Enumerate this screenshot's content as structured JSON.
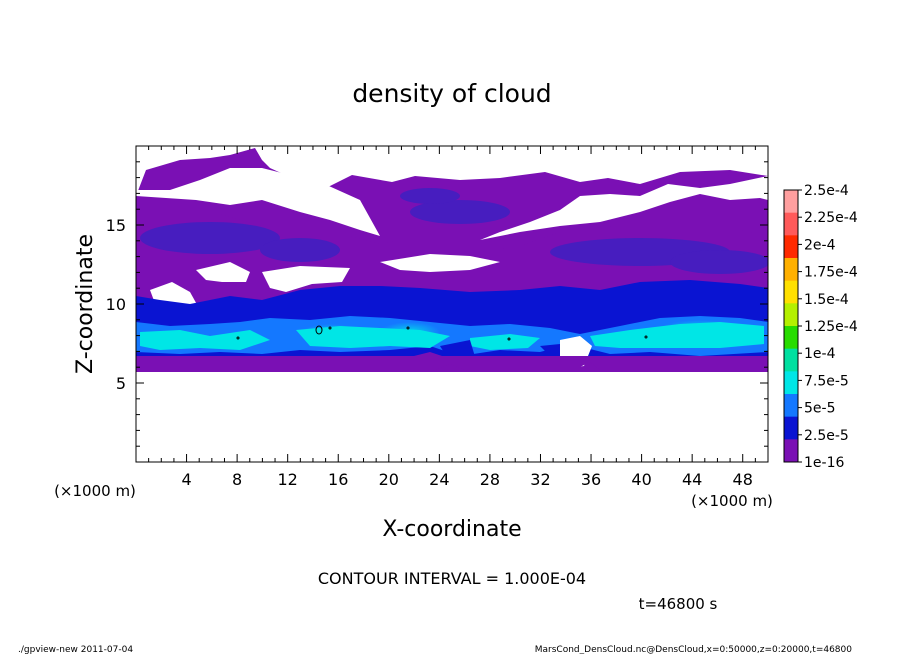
{
  "chart_data": {
    "type": "heatmap",
    "title": "density of cloud",
    "xlabel": "X-coordinate",
    "ylabel": "Z-coordinate",
    "x_unit": "(×1000 m)",
    "y_unit": "(×1000 m)",
    "xlim": [
      0,
      50
    ],
    "ylim": [
      0,
      20
    ],
    "x_ticks": [
      "4",
      "8",
      "12",
      "16",
      "20",
      "24",
      "28",
      "32",
      "36",
      "40",
      "44",
      "48"
    ],
    "y_ticks": [
      "5",
      "10",
      "15"
    ],
    "colorbar": {
      "labels": [
        "2.5e-4",
        "2.25e-4",
        "2e-4",
        "1.75e-4",
        "1.5e-4",
        "1.25e-4",
        "1e-4",
        "7.5e-5",
        "5e-5",
        "2.5e-5",
        "1e-16"
      ],
      "colors": [
        "#ff9f9f",
        "#ff5a5a",
        "#ff2a00",
        "#ffb000",
        "#ffe000",
        "#b4f000",
        "#28dc00",
        "#00e0a0",
        "#00e6e6",
        "#1478ff",
        "#0a14d2",
        "#7a10b4"
      ]
    },
    "bands": [
      {
        "z": 7.7,
        "level": "7.5e-5"
      },
      {
        "z": 8.5,
        "level": "5e-5"
      },
      {
        "z": 10.5,
        "level": "2.5e-5"
      },
      {
        "z": 14.6,
        "level": "2.5e-5"
      },
      {
        "z": 17.0,
        "level": "1e-16"
      }
    ],
    "contour_interval": "CONTOUR INTERVAL = 1.000E-04",
    "time": "t=46800 s"
  },
  "footer": {
    "left": "./gpview-new  2011-07-04",
    "right": "MarsCond_DensCloud.nc@DensCloud,x=0:50000,z=0:20000,t=46800"
  }
}
